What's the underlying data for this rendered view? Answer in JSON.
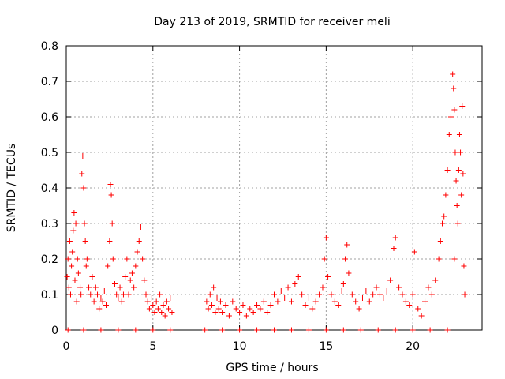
{
  "chart_data": {
    "type": "scatter",
    "title": "Day 213 of 2019, SRMTID for receiver meli",
    "xlabel": "GPS time / hours",
    "ylabel": "SRMTID / TECUs",
    "xlim": [
      0,
      24
    ],
    "ylim": [
      0,
      0.8
    ],
    "xticks": [
      0,
      5,
      10,
      15,
      20
    ],
    "xtick_labels": [
      "0",
      "5",
      "10",
      "15",
      "20"
    ],
    "yticks": [
      0,
      0.1,
      0.2,
      0.3,
      0.4,
      0.5,
      0.6,
      0.7,
      0.8
    ],
    "ytick_labels": [
      "0",
      "0.1",
      "0.2",
      "0.3",
      "0.4",
      "0.5",
      "0.6",
      "0.7",
      "0.8"
    ],
    "grid": true,
    "marker": "+",
    "color": "#ff0000",
    "series": [
      {
        "name": "SRMTID",
        "points": [
          [
            0.05,
            0.15
          ],
          [
            0.1,
            0.2
          ],
          [
            0.15,
            0.12
          ],
          [
            0.2,
            0.25
          ],
          [
            0.25,
            0.1
          ],
          [
            0.3,
            0.18
          ],
          [
            0.35,
            0.22
          ],
          [
            0.4,
            0.28
          ],
          [
            0.45,
            0.33
          ],
          [
            0.5,
            0.14
          ],
          [
            0.55,
            0.3
          ],
          [
            0.6,
            0.08
          ],
          [
            0.65,
            0.2
          ],
          [
            0.7,
            0.16
          ],
          [
            0.8,
            0.12
          ],
          [
            0.85,
            0.1
          ],
          [
            0.9,
            0.44
          ],
          [
            0.95,
            0.49
          ],
          [
            1.0,
            0.4
          ],
          [
            1.05,
            0.3
          ],
          [
            1.1,
            0.25
          ],
          [
            1.15,
            0.18
          ],
          [
            1.2,
            0.2
          ],
          [
            1.3,
            0.12
          ],
          [
            1.4,
            0.1
          ],
          [
            1.5,
            0.15
          ],
          [
            1.6,
            0.08
          ],
          [
            1.7,
            0.12
          ],
          [
            1.8,
            0.1
          ],
          [
            1.9,
            0.06
          ],
          [
            2.0,
            0.09
          ],
          [
            2.1,
            0.08
          ],
          [
            2.2,
            0.11
          ],
          [
            2.3,
            0.07
          ],
          [
            2.4,
            0.18
          ],
          [
            2.5,
            0.25
          ],
          [
            2.55,
            0.41
          ],
          [
            2.6,
            0.38
          ],
          [
            2.65,
            0.3
          ],
          [
            2.7,
            0.2
          ],
          [
            2.8,
            0.13
          ],
          [
            2.9,
            0.1
          ],
          [
            3.0,
            0.09
          ],
          [
            3.1,
            0.12
          ],
          [
            3.2,
            0.08
          ],
          [
            3.3,
            0.1
          ],
          [
            3.4,
            0.15
          ],
          [
            3.5,
            0.2
          ],
          [
            3.6,
            0.1
          ],
          [
            3.7,
            0.14
          ],
          [
            3.8,
            0.16
          ],
          [
            3.9,
            0.12
          ],
          [
            4.0,
            0.18
          ],
          [
            4.1,
            0.22
          ],
          [
            4.2,
            0.25
          ],
          [
            4.3,
            0.29
          ],
          [
            4.4,
            0.2
          ],
          [
            4.5,
            0.14
          ],
          [
            4.6,
            0.1
          ],
          [
            4.7,
            0.08
          ],
          [
            4.8,
            0.06
          ],
          [
            4.9,
            0.09
          ],
          [
            5.0,
            0.07
          ],
          [
            5.1,
            0.05
          ],
          [
            5.2,
            0.08
          ],
          [
            5.3,
            0.06
          ],
          [
            5.4,
            0.1
          ],
          [
            5.5,
            0.05
          ],
          [
            5.6,
            0.07
          ],
          [
            5.7,
            0.04
          ],
          [
            5.8,
            0.08
          ],
          [
            5.9,
            0.06
          ],
          [
            6.0,
            0.09
          ],
          [
            6.1,
            0.05
          ],
          [
            8.1,
            0.08
          ],
          [
            8.2,
            0.06
          ],
          [
            8.3,
            0.1
          ],
          [
            8.4,
            0.07
          ],
          [
            8.5,
            0.12
          ],
          [
            8.6,
            0.05
          ],
          [
            8.7,
            0.09
          ],
          [
            8.8,
            0.06
          ],
          [
            8.9,
            0.08
          ],
          [
            9.0,
            0.05
          ],
          [
            9.2,
            0.07
          ],
          [
            9.4,
            0.04
          ],
          [
            9.6,
            0.08
          ],
          [
            9.8,
            0.06
          ],
          [
            10.0,
            0.05
          ],
          [
            10.2,
            0.07
          ],
          [
            10.4,
            0.04
          ],
          [
            10.6,
            0.06
          ],
          [
            10.8,
            0.05
          ],
          [
            11.0,
            0.07
          ],
          [
            11.2,
            0.06
          ],
          [
            11.4,
            0.08
          ],
          [
            11.6,
            0.05
          ],
          [
            11.8,
            0.07
          ],
          [
            12.0,
            0.1
          ],
          [
            12.2,
            0.08
          ],
          [
            12.4,
            0.11
          ],
          [
            12.6,
            0.09
          ],
          [
            12.8,
            0.12
          ],
          [
            13.0,
            0.08
          ],
          [
            13.2,
            0.13
          ],
          [
            13.4,
            0.15
          ],
          [
            13.6,
            0.1
          ],
          [
            13.8,
            0.07
          ],
          [
            14.0,
            0.09
          ],
          [
            14.2,
            0.06
          ],
          [
            14.4,
            0.08
          ],
          [
            14.6,
            0.1
          ],
          [
            14.8,
            0.12
          ],
          [
            14.9,
            0.2
          ],
          [
            15.0,
            0.26
          ],
          [
            15.1,
            0.15
          ],
          [
            15.3,
            0.1
          ],
          [
            15.5,
            0.08
          ],
          [
            15.7,
            0.07
          ],
          [
            15.9,
            0.11
          ],
          [
            16.0,
            0.13
          ],
          [
            16.1,
            0.2
          ],
          [
            16.2,
            0.24
          ],
          [
            16.3,
            0.16
          ],
          [
            16.5,
            0.1
          ],
          [
            16.7,
            0.08
          ],
          [
            16.9,
            0.06
          ],
          [
            17.1,
            0.09
          ],
          [
            17.3,
            0.11
          ],
          [
            17.5,
            0.08
          ],
          [
            17.7,
            0.1
          ],
          [
            17.9,
            0.12
          ],
          [
            18.1,
            0.1
          ],
          [
            18.3,
            0.09
          ],
          [
            18.5,
            0.11
          ],
          [
            18.7,
            0.14
          ],
          [
            18.9,
            0.23
          ],
          [
            19.0,
            0.26
          ],
          [
            19.2,
            0.12
          ],
          [
            19.4,
            0.1
          ],
          [
            19.6,
            0.08
          ],
          [
            19.8,
            0.07
          ],
          [
            20.0,
            0.1
          ],
          [
            20.1,
            0.22
          ],
          [
            20.3,
            0.06
          ],
          [
            20.5,
            0.04
          ],
          [
            20.7,
            0.08
          ],
          [
            20.9,
            0.12
          ],
          [
            21.1,
            0.1
          ],
          [
            21.3,
            0.14
          ],
          [
            21.5,
            0.2
          ],
          [
            21.6,
            0.25
          ],
          [
            21.7,
            0.3
          ],
          [
            21.8,
            0.32
          ],
          [
            21.9,
            0.38
          ],
          [
            22.0,
            0.45
          ],
          [
            22.1,
            0.55
          ],
          [
            22.2,
            0.6
          ],
          [
            22.3,
            0.72
          ],
          [
            22.35,
            0.68
          ],
          [
            22.4,
            0.62
          ],
          [
            22.45,
            0.5
          ],
          [
            22.5,
            0.42
          ],
          [
            22.55,
            0.35
          ],
          [
            22.6,
            0.3
          ],
          [
            22.65,
            0.45
          ],
          [
            22.7,
            0.55
          ],
          [
            22.75,
            0.5
          ],
          [
            22.8,
            0.38
          ],
          [
            22.85,
            0.63
          ],
          [
            22.9,
            0.44
          ],
          [
            22.95,
            0.18
          ],
          [
            23.0,
            0.1
          ],
          [
            22.4,
            0.2
          ],
          [
            0.1,
            0.0
          ],
          [
            1.0,
            0.0
          ],
          [
            2.0,
            0.0
          ],
          [
            3.0,
            0.0
          ],
          [
            4.0,
            0.0
          ],
          [
            5.0,
            0.0
          ],
          [
            6.0,
            0.0
          ],
          [
            8.0,
            0.0
          ],
          [
            9.0,
            0.0
          ],
          [
            10.0,
            0.0
          ],
          [
            11.0,
            0.0
          ],
          [
            12.0,
            0.0
          ],
          [
            13.0,
            0.0
          ],
          [
            14.0,
            0.0
          ],
          [
            15.0,
            0.0
          ],
          [
            16.0,
            0.0
          ],
          [
            17.0,
            0.0
          ],
          [
            18.0,
            0.0
          ],
          [
            19.0,
            0.0
          ],
          [
            20.0,
            0.0
          ],
          [
            21.0,
            0.0
          ],
          [
            22.0,
            0.0
          ]
        ]
      }
    ]
  }
}
